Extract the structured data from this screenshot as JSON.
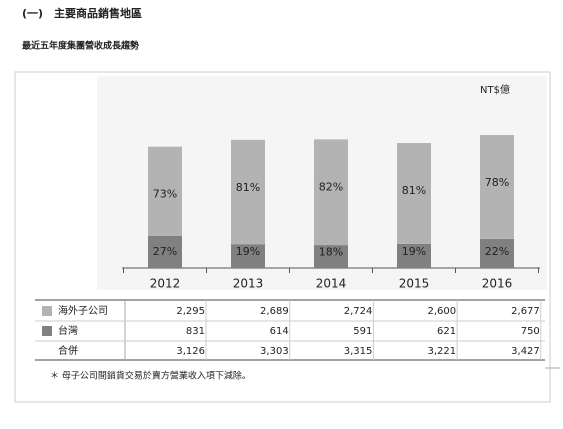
{
  "header": {
    "title": "(一)　主要商品銷售地區",
    "subtitle": "最近五年度集團營收成長趨勢"
  },
  "chart_data": {
    "type": "stacked_bar",
    "unit": "NT$億",
    "categories": [
      "2012",
      "2013",
      "2014",
      "2015",
      "2016"
    ],
    "series": [
      {
        "name": "海外子公司",
        "color": "#b3b3b3",
        "values": [
          2295,
          2689,
          2724,
          2600,
          2677
        ],
        "value_labels": [
          "2,295",
          "2,689",
          "2,724",
          "2,600",
          "2,677"
        ],
        "share_labels": [
          "73%",
          "81%",
          "82%",
          "81%",
          "78%"
        ]
      },
      {
        "name": "台灣",
        "color": "#808080",
        "values": [
          831,
          614,
          591,
          621,
          750
        ],
        "value_labels": [
          "831",
          "614",
          "591",
          "621",
          "750"
        ],
        "share_labels": [
          "27%",
          "19%",
          "18%",
          "19%",
          "22%"
        ]
      }
    ],
    "totals": {
      "name": "合併",
      "values": [
        3126,
        3303,
        3315,
        3221,
        3427
      ],
      "value_labels": [
        "3,126",
        "3,303",
        "3,315",
        "3,221",
        "3,427"
      ]
    }
  },
  "footnote": "＊ 母子公司間銷貨交易於賣方營業收入項下減除。"
}
